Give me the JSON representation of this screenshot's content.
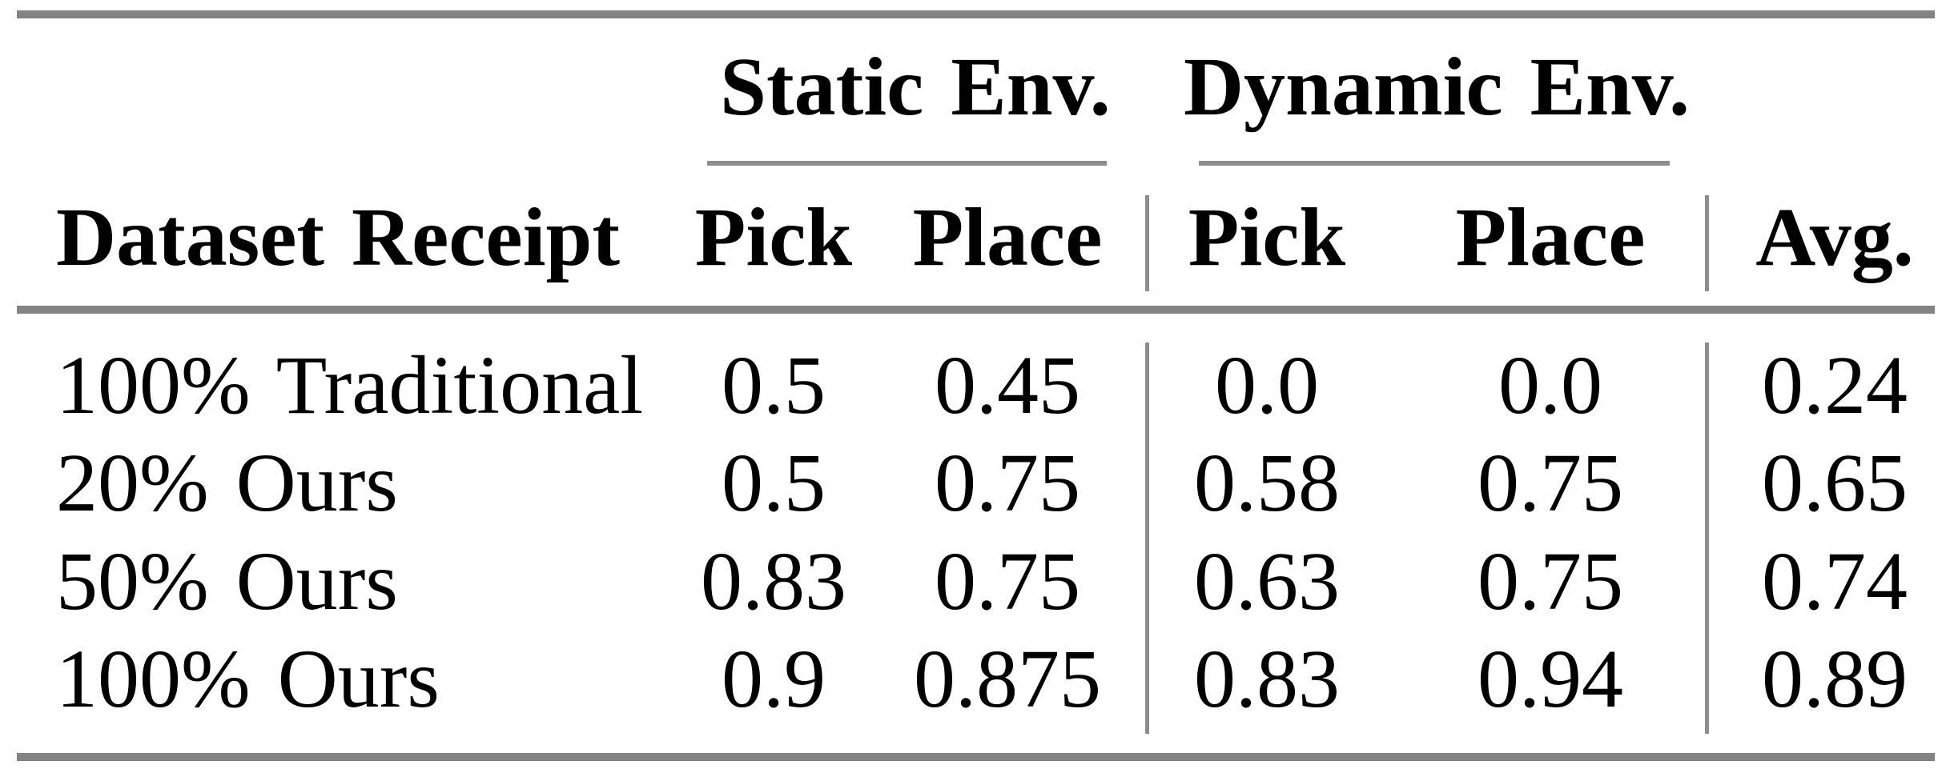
{
  "table": {
    "group_headers": [
      {
        "label": "Static Env."
      },
      {
        "label": "Dynamic Env."
      }
    ],
    "column_headers": {
      "row_label": "Dataset Receipt",
      "static_pick": "Pick",
      "static_place": "Place",
      "dynamic_pick": "Pick",
      "dynamic_place": "Place",
      "avg": "Avg."
    },
    "rows": [
      [
        "100% Traditional",
        "0.5",
        "0.45",
        "0.0",
        "0.0",
        "0.24"
      ],
      [
        "20% Ours",
        "0.5",
        "0.75",
        "0.58",
        "0.75",
        "0.65"
      ],
      [
        "50% Ours",
        "0.83",
        "0.75",
        "0.63",
        "0.75",
        "0.74"
      ],
      [
        "100% Ours",
        "0.9",
        "0.875",
        "0.83",
        "0.94",
        "0.89"
      ]
    ],
    "colors": {
      "rule_heavy": "#838383",
      "rule_light": "#8d8d8d",
      "text": "#000000",
      "background": "#ffffff"
    }
  },
  "chart_data": {
    "type": "table",
    "title": "",
    "column_groups": [
      "",
      "Static Env.",
      "Static Env.",
      "Dynamic Env.",
      "Dynamic Env.",
      ""
    ],
    "columns": [
      "Dataset Receipt",
      "Pick",
      "Place",
      "Pick",
      "Place",
      "Avg."
    ],
    "rows": [
      {
        "dataset_receipt": "100% Traditional",
        "static_pick": 0.5,
        "static_place": 0.45,
        "dynamic_pick": 0.0,
        "dynamic_place": 0.0,
        "avg": 0.24
      },
      {
        "dataset_receipt": "20% Ours",
        "static_pick": 0.5,
        "static_place": 0.75,
        "dynamic_pick": 0.58,
        "dynamic_place": 0.75,
        "avg": 0.65
      },
      {
        "dataset_receipt": "50% Ours",
        "static_pick": 0.83,
        "static_place": 0.75,
        "dynamic_pick": 0.63,
        "dynamic_place": 0.75,
        "avg": 0.74
      },
      {
        "dataset_receipt": "100% Ours",
        "static_pick": 0.9,
        "static_place": 0.875,
        "dynamic_pick": 0.83,
        "dynamic_place": 0.94,
        "avg": 0.89
      }
    ]
  }
}
